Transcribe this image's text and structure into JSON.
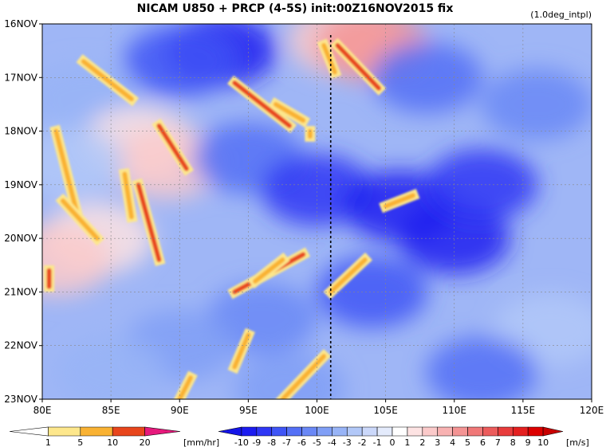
{
  "chart_data": {
    "type": "heatmap",
    "title": "NICAM   U850 + PRCP (4-5S) init:00Z16NOV2015 fix",
    "subtitle": "(1.0deg_intpl)",
    "x_ticks": [
      "80E",
      "85E",
      "90E",
      "95E",
      "100E",
      "105E",
      "110E",
      "115E",
      "120E"
    ],
    "x_values": [
      80,
      85,
      90,
      95,
      100,
      105,
      110,
      115,
      120
    ],
    "xlim": [
      80,
      120
    ],
    "y_ticks": [
      "16NOV",
      "17NOV",
      "18NOV",
      "19NOV",
      "20NOV",
      "21NOV",
      "22NOV",
      "23NOV"
    ],
    "y_values": [
      16,
      17,
      18,
      19,
      20,
      21,
      22,
      23
    ],
    "ylim": [
      16,
      23
    ],
    "grid": true,
    "reference_line_lon": 101,
    "u850_anomaly_cells": [
      {
        "lon": 93,
        "day": 16.5,
        "v": -9
      },
      {
        "lon": 90,
        "day": 16.7,
        "v": -7
      },
      {
        "lon": 102,
        "day": 16.3,
        "v": 3
      },
      {
        "lon": 104,
        "day": 16.4,
        "v": 5
      },
      {
        "lon": 83,
        "day": 17.4,
        "v": -3
      },
      {
        "lon": 87,
        "day": 18.2,
        "v": 2
      },
      {
        "lon": 89,
        "day": 18.6,
        "v": 3
      },
      {
        "lon": 84,
        "day": 20.0,
        "v": 2
      },
      {
        "lon": 81,
        "day": 20.4,
        "v": 3
      },
      {
        "lon": 95,
        "day": 18.5,
        "v": -6
      },
      {
        "lon": 100,
        "day": 19.1,
        "v": -8
      },
      {
        "lon": 106,
        "day": 19.4,
        "v": -9
      },
      {
        "lon": 110,
        "day": 20.0,
        "v": -9
      },
      {
        "lon": 112,
        "day": 19.0,
        "v": -8
      },
      {
        "lon": 104,
        "day": 21.0,
        "v": -7
      },
      {
        "lon": 96,
        "day": 21.5,
        "v": -5
      },
      {
        "lon": 90,
        "day": 22.0,
        "v": -4
      },
      {
        "lon": 85,
        "day": 22.5,
        "v": -3
      },
      {
        "lon": 117,
        "day": 21.7,
        "v": -2
      },
      {
        "lon": 116,
        "day": 17.5,
        "v": -5
      },
      {
        "lon": 112,
        "day": 22.5,
        "v": -6
      },
      {
        "lon": 98,
        "day": 22.8,
        "v": -4
      },
      {
        "lon": 108,
        "day": 17.0,
        "v": -6
      },
      {
        "lon": 82,
        "day": 18.6,
        "v": -2
      }
    ],
    "prcp_streaks": [
      {
        "lon0": 81.0,
        "day0": 18.0,
        "lon1": 82.5,
        "day1": 19.5,
        "v": 8
      },
      {
        "lon0": 81.5,
        "day0": 19.3,
        "lon1": 84.0,
        "day1": 20.0,
        "v": 6
      },
      {
        "lon0": 83.0,
        "day0": 16.7,
        "lon1": 86.5,
        "day1": 17.4,
        "v": 5
      },
      {
        "lon0": 88.5,
        "day0": 17.9,
        "lon1": 90.5,
        "day1": 18.7,
        "v": 12
      },
      {
        "lon0": 87.0,
        "day0": 19.0,
        "lon1": 88.5,
        "day1": 20.4,
        "v": 10
      },
      {
        "lon0": 86.0,
        "day0": 18.8,
        "lon1": 86.5,
        "day1": 19.6,
        "v": 5
      },
      {
        "lon0": 94.0,
        "day0": 17.1,
        "lon1": 98.0,
        "day1": 17.9,
        "v": 10
      },
      {
        "lon0": 97.0,
        "day0": 17.5,
        "lon1": 99.0,
        "day1": 17.8,
        "v": 6
      },
      {
        "lon0": 100.5,
        "day0": 16.4,
        "lon1": 101.3,
        "day1": 16.9,
        "v": 9
      },
      {
        "lon0": 101.5,
        "day0": 16.4,
        "lon1": 104.5,
        "day1": 17.2,
        "v": 14
      },
      {
        "lon0": 94.0,
        "day0": 21.0,
        "lon1": 99.0,
        "day1": 20.3,
        "v": 11
      },
      {
        "lon0": 95.5,
        "day0": 20.8,
        "lon1": 97.5,
        "day1": 20.4,
        "v": 8
      },
      {
        "lon0": 101.0,
        "day0": 21.0,
        "lon1": 103.5,
        "day1": 20.4,
        "v": 5
      },
      {
        "lon0": 105.0,
        "day0": 19.4,
        "lon1": 107.0,
        "day1": 19.2,
        "v": 5
      },
      {
        "lon0": 94.0,
        "day0": 22.4,
        "lon1": 95.0,
        "day1": 21.8,
        "v": 6
      },
      {
        "lon0": 97.5,
        "day0": 23.0,
        "lon1": 100.5,
        "day1": 22.2,
        "v": 9
      },
      {
        "lon0": 90.0,
        "day0": 23.0,
        "lon1": 90.8,
        "day1": 22.6,
        "v": 6
      },
      {
        "lon0": 80.5,
        "day0": 20.6,
        "lon1": 80.5,
        "day1": 20.9,
        "v": 12
      },
      {
        "lon0": 99.5,
        "day0": 18.0,
        "lon1": 99.5,
        "day1": 18.1,
        "v": 5
      }
    ],
    "prcp_legend": {
      "labels": [
        "1",
        "5",
        "10",
        "20"
      ],
      "unit": "[mm/hr]",
      "colors": [
        "#ffffff",
        "#fde78c",
        "#f9b233",
        "#e8461c",
        "#e6197c"
      ]
    },
    "u850_legend": {
      "labels": [
        "-10",
        "-9",
        "-8",
        "-7",
        "-6",
        "-5",
        "-4",
        "-3",
        "-2",
        "-1",
        "0",
        "1",
        "2",
        "3",
        "4",
        "5",
        "6",
        "7",
        "8",
        "9",
        "10"
      ],
      "unit": "[m/s]",
      "colors": [
        "#1515e8",
        "#1c1cf0",
        "#2f37f5",
        "#3f55f6",
        "#5470f6",
        "#6a88f6",
        "#809ff6",
        "#98b4f7",
        "#b2c8f8",
        "#cbd8fa",
        "#e4ebfc",
        "#ffffff",
        "#fde3e3",
        "#fbcaca",
        "#f8b2b2",
        "#f49494",
        "#f07878",
        "#ec5c5c",
        "#e83c3c",
        "#e42020",
        "#dc0000",
        "#c80000"
      ]
    }
  }
}
